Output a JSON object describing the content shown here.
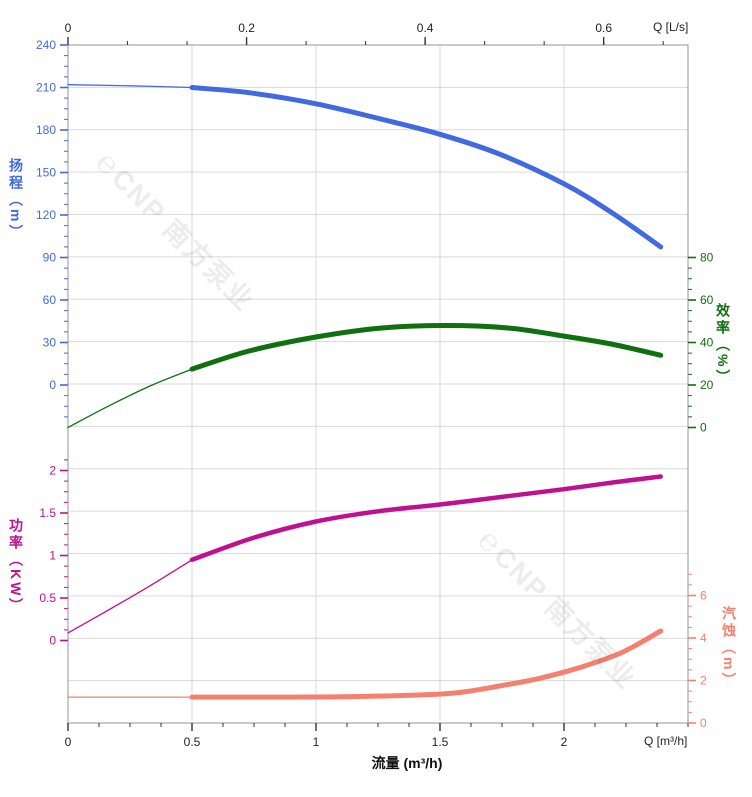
{
  "watermark": {
    "logo_glyph": "℮",
    "text": "CNP 南方泵业"
  },
  "chart_data": {
    "type": "line",
    "title": "",
    "grid": true,
    "x_axis_bottom": {
      "label": "流量 (m³/h)",
      "corner_label": "Q [m³/h]",
      "min": 0,
      "max": 2.5,
      "majors": [
        {
          "v": 0,
          "t": "0"
        },
        {
          "v": 0.5,
          "t": "0.5"
        },
        {
          "v": 1,
          "t": "1"
        },
        {
          "v": 1.5,
          "t": "1.5"
        },
        {
          "v": 2,
          "t": "2"
        }
      ],
      "minor_step": 0.125,
      "minor_min": 0,
      "minor_max": 2.5
    },
    "x_axis_top": {
      "corner_label": "Q [L/s]",
      "min": 0,
      "max": 0.69444,
      "majors": [
        {
          "v": 0,
          "t": "0"
        },
        {
          "v": 0.2,
          "t": "0.2"
        },
        {
          "v": 0.4,
          "t": "0.4"
        },
        {
          "v": 0.6,
          "t": "0.6"
        }
      ],
      "minor_step": 0.066667,
      "minor_min": 0,
      "minor_max": 0.6889
    },
    "y_axes": [
      {
        "id": "head",
        "title": "扬程（m）",
        "color": "#4169e1",
        "side": "left",
        "majors": [
          {
            "v": 240,
            "t": "240"
          },
          {
            "v": 210,
            "t": "210"
          },
          {
            "v": 180,
            "t": "180"
          },
          {
            "v": 150,
            "t": "150"
          },
          {
            "v": 120,
            "t": "120"
          },
          {
            "v": 90,
            "t": "90"
          },
          {
            "v": 60,
            "t": "60"
          },
          {
            "v": 30,
            "t": "30"
          },
          {
            "v": 0,
            "t": "0"
          }
        ],
        "minor_step": 7.5,
        "minor_min": -22.5,
        "minor_max": 240
      },
      {
        "id": "eff",
        "title": "效率（%）",
        "color": "#107010",
        "side": "right",
        "majors": [
          {
            "v": 80,
            "t": "80"
          },
          {
            "v": 60,
            "t": "60"
          },
          {
            "v": 40,
            "t": "40"
          },
          {
            "v": 20,
            "t": "20"
          },
          {
            "v": 0,
            "t": "0"
          }
        ],
        "minor_step": 5,
        "minor_min": 0,
        "minor_max": 80
      },
      {
        "id": "power",
        "title": "功率（KW）",
        "color": "#c0108f",
        "side": "left",
        "majors": [
          {
            "v": 2,
            "t": "2"
          },
          {
            "v": 1.5,
            "t": "1.5"
          },
          {
            "v": 1,
            "t": "1"
          },
          {
            "v": 0.5,
            "t": "0.5"
          },
          {
            "v": 0,
            "t": "0"
          }
        ],
        "minor_step": 0.125,
        "minor_min": 0,
        "minor_max": 2.125
      },
      {
        "id": "npsh",
        "title": "汽蚀（m）",
        "color": "#f5806e",
        "side": "right",
        "majors": [
          {
            "v": 6,
            "t": "6"
          },
          {
            "v": 4,
            "t": "4"
          },
          {
            "v": 2,
            "t": "2"
          },
          {
            "v": 0,
            "t": "0"
          }
        ],
        "minor_step": 0.5,
        "minor_min": 0,
        "minor_max": 7
      }
    ],
    "series": [
      {
        "name": "head-curve",
        "axis": "head",
        "color": "#4169e1",
        "segments": [
          {
            "w": 1.3,
            "q": [
              0,
              0.25,
              0.5
            ],
            "v": [
              212,
              211.2,
              210
            ]
          },
          {
            "w": 5,
            "q": [
              0.5,
              0.73,
              1.0,
              1.26,
              1.5,
              1.74,
              2.0,
              2.19,
              2.39
            ],
            "v": [
              210,
              206.3,
              198.5,
              187.8,
              177,
              163,
              142,
              122,
              97.5
            ]
          }
        ]
      },
      {
        "name": "efficiency-curve",
        "axis": "eff",
        "color": "#107010",
        "segments": [
          {
            "w": 1.3,
            "q": [
              0,
              0.17,
              0.34,
              0.5
            ],
            "v": [
              0,
              10.5,
              20,
              27.5
            ]
          },
          {
            "w": 5,
            "q": [
              0.5,
              0.73,
              1.0,
              1.26,
              1.53,
              1.78,
              2.0,
              2.19,
              2.39
            ],
            "v": [
              27.5,
              36,
              42.6,
              46.8,
              48,
              46.8,
              43,
              39.3,
              34
            ]
          }
        ]
      },
      {
        "name": "power-curve",
        "axis": "power",
        "color": "#c0108f",
        "segments": [
          {
            "w": 1.3,
            "q": [
              0,
              0.17,
              0.34,
              0.5
            ],
            "v": [
              0.09,
              0.37,
              0.66,
              0.95
            ]
          },
          {
            "w": 4.5,
            "q": [
              0.5,
              0.75,
              1.0,
              1.25,
              1.5,
              1.75,
              2.0,
              2.2,
              2.39
            ],
            "v": [
              0.95,
              1.21,
              1.4,
              1.52,
              1.6,
              1.69,
              1.78,
              1.86,
              1.93
            ]
          }
        ]
      },
      {
        "name": "npsh-curve",
        "axis": "npsh",
        "color": "#f5806e",
        "segments": [
          {
            "w": 1.3,
            "q": [
              0,
              0.5
            ],
            "v": [
              1.22,
              1.22
            ]
          },
          {
            "w": 5,
            "q": [
              0.5,
              0.9,
              1.2,
              1.5,
              1.62,
              1.74,
              1.9,
              2.06,
              2.23,
              2.39
            ],
            "v": [
              1.22,
              1.22,
              1.25,
              1.36,
              1.5,
              1.74,
              2.1,
              2.6,
              3.3,
              4.33
            ]
          }
        ]
      }
    ]
  }
}
